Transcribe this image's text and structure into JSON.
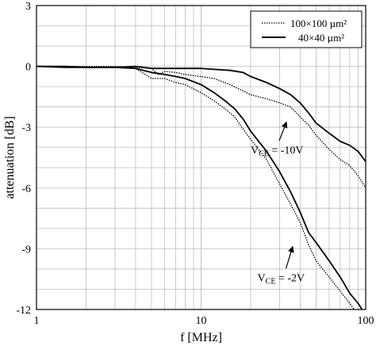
{
  "chart_data": {
    "type": "line",
    "xlabel": "f [MHz]",
    "ylabel": "attenuation [dB]",
    "xscale": "log",
    "xlim": [
      1,
      100
    ],
    "ylim": [
      -12,
      3
    ],
    "grid": true,
    "legend_position": "top-right",
    "x_ticks": [
      {
        "value": 1,
        "label": "1"
      },
      {
        "value": 10,
        "label": "10"
      },
      {
        "value": 100,
        "label": "100"
      }
    ],
    "y_ticks": [
      {
        "value": 3,
        "label": "3"
      },
      {
        "value": 0,
        "label": "0"
      },
      {
        "value": -3,
        "label": "-3"
      },
      {
        "value": -6,
        "label": "-6"
      },
      {
        "value": -9,
        "label": "-9"
      },
      {
        "value": -12,
        "label": "-12"
      }
    ],
    "legend": [
      {
        "label": "100×100 µm²",
        "style": "dotted"
      },
      {
        "label": "40×40 µm²",
        "style": "solid"
      }
    ],
    "series": [
      {
        "name": "100×100 µm²",
        "condition": "VCE = -10V",
        "style": "dotted",
        "x": [
          1,
          1.5,
          2,
          3,
          4,
          5,
          5.5,
          6,
          7,
          8,
          10,
          12,
          15,
          20,
          25,
          30,
          35,
          40,
          45,
          50,
          60,
          70,
          80,
          90,
          100
        ],
        "y": [
          0,
          0,
          0,
          0,
          -0.05,
          -0.1,
          -0.4,
          -0.25,
          -0.3,
          -0.4,
          -0.5,
          -0.6,
          -0.9,
          -1.4,
          -1.6,
          -1.8,
          -2.0,
          -2.5,
          -2.9,
          -3.4,
          -4.1,
          -4.6,
          -4.9,
          -5.4,
          -6.0
        ]
      },
      {
        "name": "40×40 µm²",
        "condition": "VCE = -10V",
        "style": "solid",
        "x": [
          1,
          1.5,
          2,
          3,
          4,
          5,
          6,
          8,
          10,
          12,
          15,
          18,
          20,
          25,
          30,
          35,
          40,
          45,
          50,
          60,
          70,
          80,
          90,
          100
        ],
        "y": [
          0,
          -0.05,
          -0.05,
          -0.05,
          0,
          -0.1,
          -0.1,
          -0.1,
          -0.1,
          -0.15,
          -0.2,
          -0.3,
          -0.5,
          -0.8,
          -1.1,
          -1.4,
          -1.8,
          -2.3,
          -2.8,
          -3.3,
          -3.7,
          -3.9,
          -4.2,
          -4.7
        ]
      },
      {
        "name": "100×100 µm²",
        "condition": "VCE = -2V",
        "style": "dotted",
        "x": [
          1,
          1.5,
          2,
          3,
          4,
          5,
          6,
          7,
          8,
          10,
          12,
          14,
          16,
          18,
          20,
          25,
          30,
          35,
          40,
          45,
          50,
          60,
          70,
          80,
          85
        ],
        "y": [
          0,
          0,
          -0.05,
          -0.05,
          -0.1,
          -0.6,
          -0.6,
          -0.8,
          -0.9,
          -1.3,
          -1.7,
          -2.1,
          -2.5,
          -3.1,
          -3.6,
          -4.6,
          -5.8,
          -6.8,
          -7.7,
          -8.8,
          -9.6,
          -10.4,
          -11.1,
          -11.7,
          -12.0
        ]
      },
      {
        "name": "40×40 µm²",
        "condition": "VCE = -2V",
        "style": "solid",
        "x": [
          1,
          1.5,
          2,
          3,
          4,
          5,
          6,
          7,
          8,
          10,
          12,
          14,
          16,
          18,
          20,
          25,
          30,
          35,
          40,
          45,
          50,
          60,
          70,
          80,
          90,
          95
        ],
        "y": [
          0,
          0,
          -0.05,
          -0.05,
          -0.1,
          -0.3,
          -0.4,
          -0.5,
          -0.6,
          -0.9,
          -1.3,
          -1.7,
          -2.1,
          -2.6,
          -3.2,
          -4.2,
          -5.2,
          -6.2,
          -7.2,
          -8.2,
          -8.7,
          -9.6,
          -10.4,
          -11.2,
          -11.7,
          -12.0
        ]
      }
    ],
    "annotations": [
      {
        "main": "V",
        "sub": "CE",
        "rest": " = -10V",
        "x": 20,
        "y": -4.3,
        "arrow_to": [
          33,
          -2.75
        ]
      },
      {
        "main": "V",
        "sub": "CE",
        "rest": " = -2V",
        "x": 22,
        "y": -10.6,
        "arrow_to": [
          36,
          -8.9
        ]
      }
    ]
  }
}
